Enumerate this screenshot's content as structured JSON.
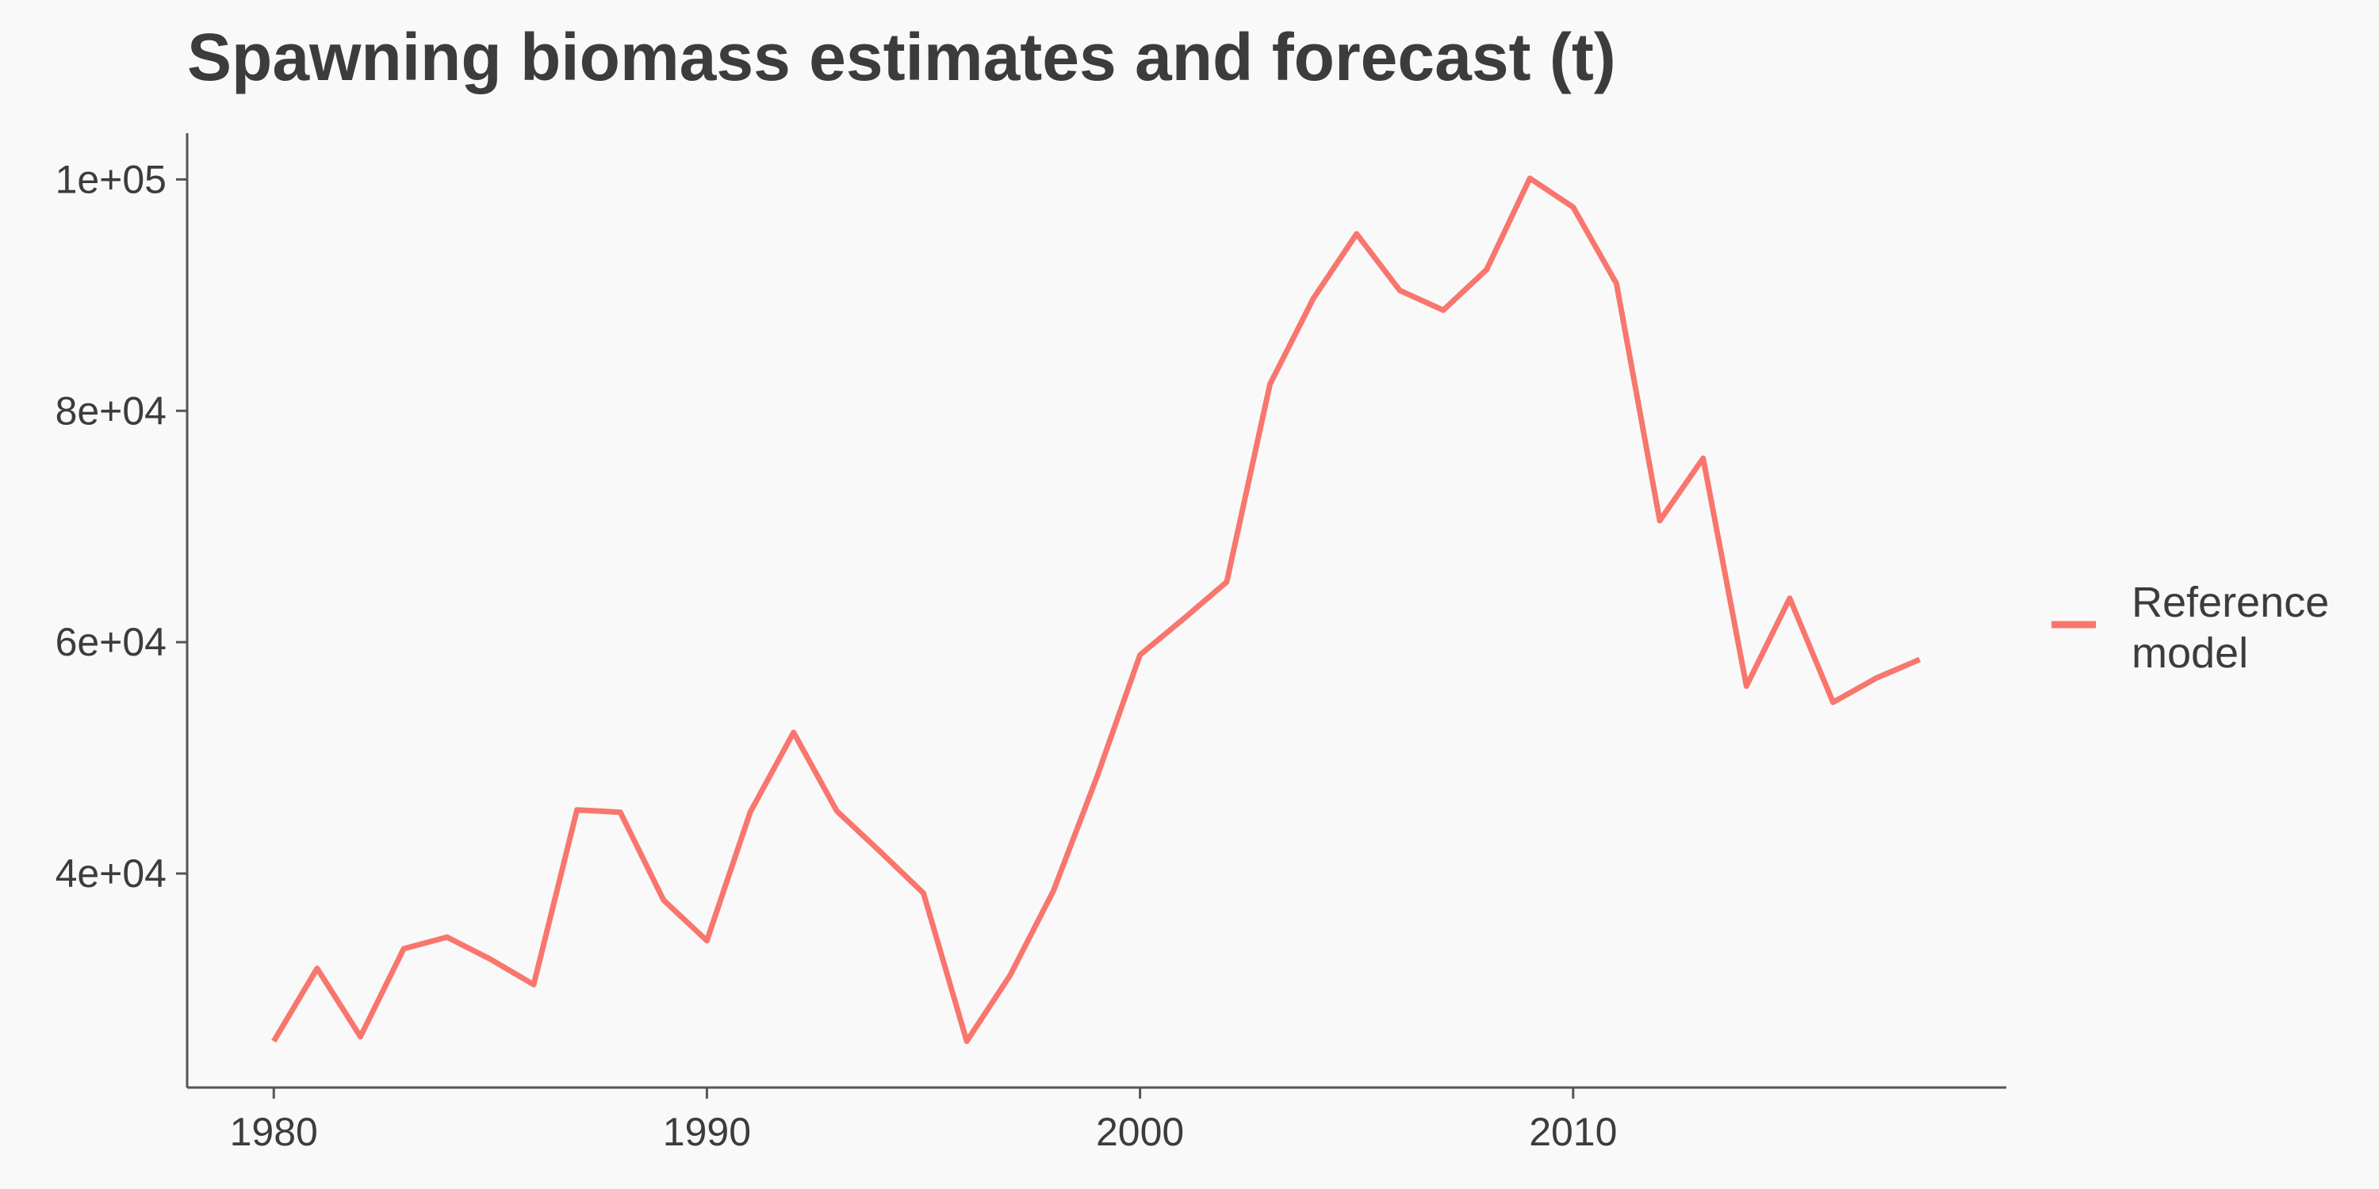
{
  "chart_data": {
    "type": "line",
    "title": "Spawning biomass estimates and forecast (t)",
    "xlabel": "",
    "ylabel": "",
    "xlim": [
      1978,
      2020
    ],
    "ylim": [
      21500,
      104000
    ],
    "x_ticks": [
      1980,
      1990,
      2000,
      2010
    ],
    "x_tick_labels": [
      "1980",
      "1990",
      "2000",
      "2010"
    ],
    "y_ticks": [
      40000,
      60000,
      80000,
      100000
    ],
    "y_tick_labels": [
      "4e+04",
      "6e+04",
      "8e+04",
      "1e+05"
    ],
    "grid": false,
    "legend": {
      "position": "right",
      "entries": [
        "Reference model"
      ]
    },
    "series": [
      {
        "name": "Reference model",
        "color": "#F8766D",
        "x": [
          1980,
          1981,
          1982,
          1983,
          1984,
          1985,
          1986,
          1987,
          1988,
          1989,
          1990,
          1991,
          1992,
          1993,
          1994,
          1995,
          1996,
          1997,
          1998,
          1999,
          2000,
          2001,
          2002,
          2003,
          2004,
          2005,
          2006,
          2007,
          2008,
          2009,
          2010,
          2011,
          2012,
          2013,
          2014,
          2015,
          2016,
          2017,
          2018
        ],
        "values": [
          25500,
          31800,
          25900,
          33500,
          34500,
          32600,
          30400,
          45500,
          45300,
          37700,
          34200,
          45300,
          52200,
          45400,
          41900,
          38300,
          25500,
          31200,
          38500,
          48300,
          58900,
          62000,
          65200,
          82300,
          89700,
          95300,
          90400,
          88700,
          92200,
          100100,
          97600,
          91000,
          70500,
          75900,
          56200,
          63800,
          54800,
          56900,
          58500
        ]
      }
    ]
  }
}
